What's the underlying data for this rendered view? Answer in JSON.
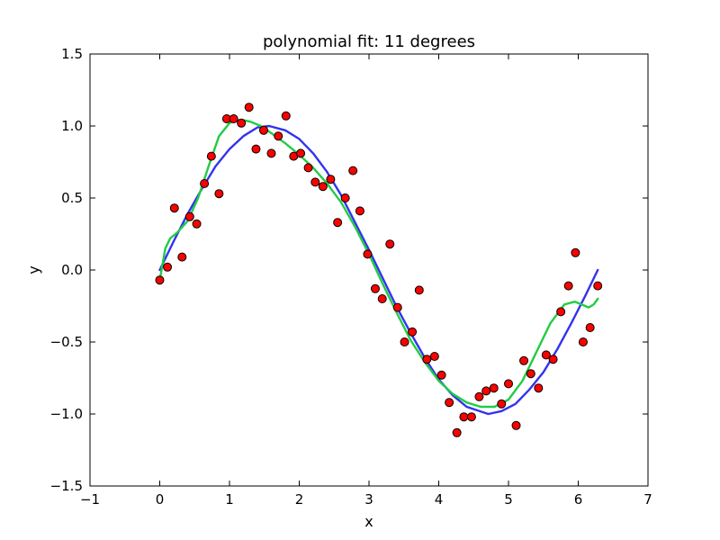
{
  "chart_data": {
    "type": "scatter",
    "title": "polynomial fit: 11 degrees",
    "xlabel": "x",
    "ylabel": "y",
    "xlim": [
      -1,
      7
    ],
    "ylim": [
      -1.5,
      1.5
    ],
    "xticks": [
      -1,
      0,
      1,
      2,
      3,
      4,
      5,
      6,
      7
    ],
    "xtick_labels": [
      "−1",
      "0",
      "1",
      "2",
      "3",
      "4",
      "5",
      "6",
      "7"
    ],
    "yticks": [
      -1.5,
      -1.0,
      -0.5,
      0.0,
      0.5,
      1.0,
      1.5
    ],
    "ytick_labels": [
      "−1.5",
      "−1.0",
      "−0.5",
      "0.0",
      "0.5",
      "1.0",
      "1.5"
    ],
    "grid": false,
    "series": [
      {
        "kind": "points",
        "color": "#ff0000",
        "edge_color": "#000000",
        "x": [
          0.0,
          0.11,
          0.21,
          0.32,
          0.43,
          0.53,
          0.64,
          0.74,
          0.85,
          0.96,
          1.06,
          1.17,
          1.28,
          1.38,
          1.49,
          1.6,
          1.7,
          1.81,
          1.92,
          2.02,
          2.13,
          2.23,
          2.34,
          2.45,
          2.55,
          2.66,
          2.77,
          2.87,
          2.98,
          3.09,
          3.19,
          3.3,
          3.41,
          3.51,
          3.62,
          3.72,
          3.83,
          3.94,
          4.04,
          4.15,
          4.26,
          4.36,
          4.47,
          4.58,
          4.68,
          4.79,
          4.9,
          5.0,
          5.11,
          5.22,
          5.32,
          5.43,
          5.54,
          5.64,
          5.75,
          5.86,
          5.96,
          6.07,
          6.17,
          6.28
        ],
        "y": [
          -0.07,
          0.02,
          0.43,
          0.09,
          0.37,
          0.32,
          0.6,
          0.79,
          0.53,
          1.05,
          1.05,
          1.02,
          1.13,
          0.84,
          0.97,
          0.81,
          0.93,
          1.07,
          0.79,
          0.81,
          0.71,
          0.61,
          0.58,
          0.63,
          0.33,
          0.5,
          0.69,
          0.41,
          0.11,
          -0.13,
          -0.2,
          0.18,
          -0.26,
          -0.5,
          -0.43,
          -0.14,
          -0.62,
          -0.6,
          -0.73,
          -0.92,
          -1.13,
          -1.02,
          -1.02,
          -0.88,
          -0.84,
          -0.82,
          -0.93,
          -0.79,
          -1.08,
          -0.63,
          -0.72,
          -0.82,
          -0.59,
          -0.62,
          -0.29,
          -0.11,
          0.12,
          -0.5,
          -0.4,
          -0.11
        ]
      },
      {
        "kind": "line",
        "color": "#3333ee",
        "x": [
          0.0,
          0.2,
          0.4,
          0.6,
          0.8,
          1.0,
          1.2,
          1.4,
          1.57,
          1.8,
          2.0,
          2.2,
          2.4,
          2.6,
          2.8,
          3.0,
          3.14,
          3.4,
          3.6,
          3.8,
          4.0,
          4.2,
          4.4,
          4.71,
          4.9,
          5.1,
          5.3,
          5.5,
          5.7,
          5.9,
          6.1,
          6.28
        ],
        "y": [
          0.0,
          0.2,
          0.39,
          0.56,
          0.72,
          0.84,
          0.93,
          0.99,
          1.0,
          0.97,
          0.91,
          0.81,
          0.68,
          0.52,
          0.33,
          0.14,
          0.0,
          -0.26,
          -0.44,
          -0.61,
          -0.76,
          -0.87,
          -0.95,
          -1.0,
          -0.98,
          -0.93,
          -0.83,
          -0.71,
          -0.55,
          -0.37,
          -0.18,
          0.0
        ]
      },
      {
        "kind": "line",
        "color": "#22cc44",
        "x": [
          0.0,
          0.08,
          0.15,
          0.25,
          0.4,
          0.55,
          0.7,
          0.85,
          1.0,
          1.1,
          1.2,
          1.3,
          1.45,
          1.6,
          1.8,
          2.0,
          2.2,
          2.4,
          2.6,
          2.8,
          3.0,
          3.2,
          3.4,
          3.6,
          3.8,
          4.0,
          4.2,
          4.4,
          4.6,
          4.8,
          5.0,
          5.2,
          5.4,
          5.6,
          5.8,
          5.95,
          6.05,
          6.15,
          6.22,
          6.28
        ],
        "y": [
          -0.07,
          0.15,
          0.22,
          0.26,
          0.34,
          0.5,
          0.72,
          0.93,
          1.02,
          1.04,
          1.04,
          1.03,
          1.0,
          0.95,
          0.88,
          0.8,
          0.71,
          0.6,
          0.47,
          0.3,
          0.11,
          -0.1,
          -0.3,
          -0.49,
          -0.64,
          -0.77,
          -0.86,
          -0.92,
          -0.95,
          -0.95,
          -0.9,
          -0.77,
          -0.57,
          -0.37,
          -0.24,
          -0.22,
          -0.24,
          -0.26,
          -0.24,
          -0.2
        ]
      }
    ]
  }
}
